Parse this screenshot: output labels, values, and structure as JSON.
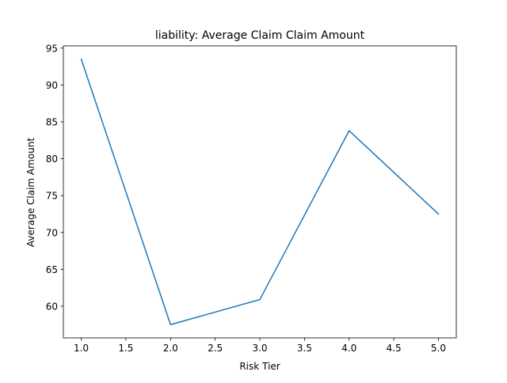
{
  "chart_data": {
    "type": "line",
    "title": "liability: Average Claim Claim Amount",
    "xlabel": "Risk Tier",
    "ylabel": "Average Claim Amount",
    "x": [
      1.0,
      2.0,
      3.0,
      4.0,
      5.0
    ],
    "series": [
      {
        "values": [
          93.5,
          57.5,
          60.9,
          83.8,
          72.5
        ],
        "color": "#1f77b4"
      }
    ],
    "xlim": [
      0.8,
      5.2
    ],
    "ylim": [
      55.7,
      95.3
    ],
    "xticks": [
      1.0,
      1.5,
      2.0,
      2.5,
      3.0,
      3.5,
      4.0,
      4.5,
      5.0
    ],
    "xtick_labels": [
      "1.0",
      "1.5",
      "2.0",
      "2.5",
      "3.0",
      "3.5",
      "4.0",
      "4.5",
      "5.0"
    ],
    "yticks": [
      60,
      65,
      70,
      75,
      80,
      85,
      90,
      95
    ],
    "ytick_labels": [
      "60",
      "65",
      "70",
      "75",
      "80",
      "85",
      "90",
      "95"
    ],
    "grid": false,
    "legend": false
  }
}
